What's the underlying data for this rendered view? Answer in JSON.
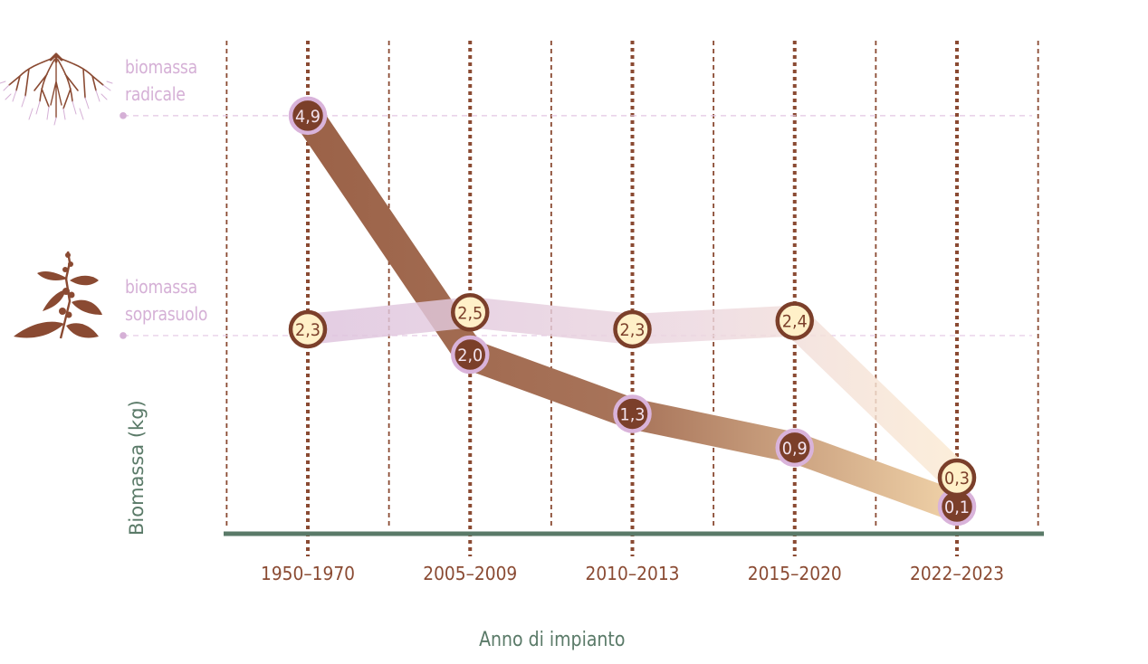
{
  "chart_data": {
    "type": "line",
    "title": "",
    "xlabel": "Anno di impianto",
    "ylabel": "Biomassa (kg)",
    "categories": [
      "1950-1970",
      "2005-2009",
      "2010-2013",
      "2015-2020",
      "2022-2023"
    ],
    "series": [
      {
        "name": "biomassa radicale",
        "name_lines": [
          "biomassa",
          "radicale"
        ],
        "values": [
          4.9,
          2.0,
          1.3,
          0.9,
          0.1
        ],
        "labels": [
          "4,9",
          "2,0",
          "1,3",
          "0,9",
          "0,1"
        ],
        "icon": "roots-icon",
        "color_start": "#9b6248",
        "color_end": "#f0d2a8",
        "marker_fill": "#7b3f2a",
        "marker_stroke": "#d9b3da",
        "marker_text": "#f3e3ee",
        "guide_color": "#e3c6e3"
      },
      {
        "name": "biomassa soprasuolo",
        "name_lines": [
          "biomassa",
          "soprasuolo"
        ],
        "values": [
          2.3,
          2.5,
          2.3,
          2.4,
          0.3
        ],
        "labels": [
          "2,3",
          "2,5",
          "2,3",
          "2,4",
          "0,3"
        ],
        "icon": "coffee-plant-icon",
        "color_start": "#ddc2dd",
        "color_end": "#fbead2",
        "marker_fill": "#fff0c8",
        "marker_stroke": "#7b3f2a",
        "marker_text": "#7b3f2a",
        "guide_color": "#e3c6e3"
      }
    ],
    "ylim": [
      0,
      5.2
    ],
    "grid": true,
    "legend": "left",
    "colors": {
      "axis": "#5a7a68",
      "gridline": "#8a4a32",
      "tick_text": "#8a4a32",
      "legend_text": "#d5b0d6"
    }
  }
}
